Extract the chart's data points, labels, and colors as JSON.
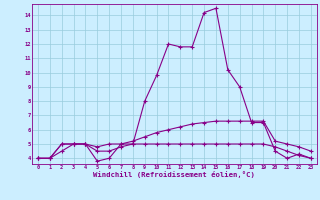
{
  "xlabel": "Windchill (Refroidissement éolien,°C)",
  "x": [
    0,
    1,
    2,
    3,
    4,
    5,
    6,
    7,
    8,
    9,
    10,
    11,
    12,
    13,
    14,
    15,
    16,
    17,
    18,
    19,
    20,
    21,
    22,
    23
  ],
  "line1": [
    4.0,
    4.0,
    5.0,
    5.0,
    5.0,
    3.8,
    4.0,
    5.0,
    5.0,
    8.0,
    9.8,
    12.0,
    11.8,
    11.8,
    14.2,
    14.5,
    10.2,
    9.0,
    6.5,
    6.5,
    4.5,
    4.0,
    4.3,
    4.0
  ],
  "line2": [
    4.0,
    4.0,
    5.0,
    5.0,
    5.0,
    4.8,
    5.0,
    5.0,
    5.2,
    5.5,
    5.8,
    6.0,
    6.2,
    6.4,
    6.5,
    6.6,
    6.6,
    6.6,
    6.6,
    6.6,
    5.2,
    5.0,
    4.8,
    4.5
  ],
  "line3": [
    4.0,
    4.0,
    4.5,
    5.0,
    5.0,
    4.5,
    4.5,
    4.8,
    5.0,
    5.0,
    5.0,
    5.0,
    5.0,
    5.0,
    5.0,
    5.0,
    5.0,
    5.0,
    5.0,
    5.0,
    4.8,
    4.5,
    4.2,
    4.0
  ],
  "line_color": "#880088",
  "bg_color": "#cceeff",
  "grid_color": "#99ccdd",
  "ylim": [
    3.6,
    14.8
  ],
  "xlim": [
    -0.5,
    23.5
  ],
  "yticks": [
    4,
    5,
    6,
    7,
    8,
    9,
    10,
    11,
    12,
    13,
    14
  ],
  "xticks": [
    0,
    1,
    2,
    3,
    4,
    5,
    6,
    7,
    8,
    9,
    10,
    11,
    12,
    13,
    14,
    15,
    16,
    17,
    18,
    19,
    20,
    21,
    22,
    23
  ]
}
